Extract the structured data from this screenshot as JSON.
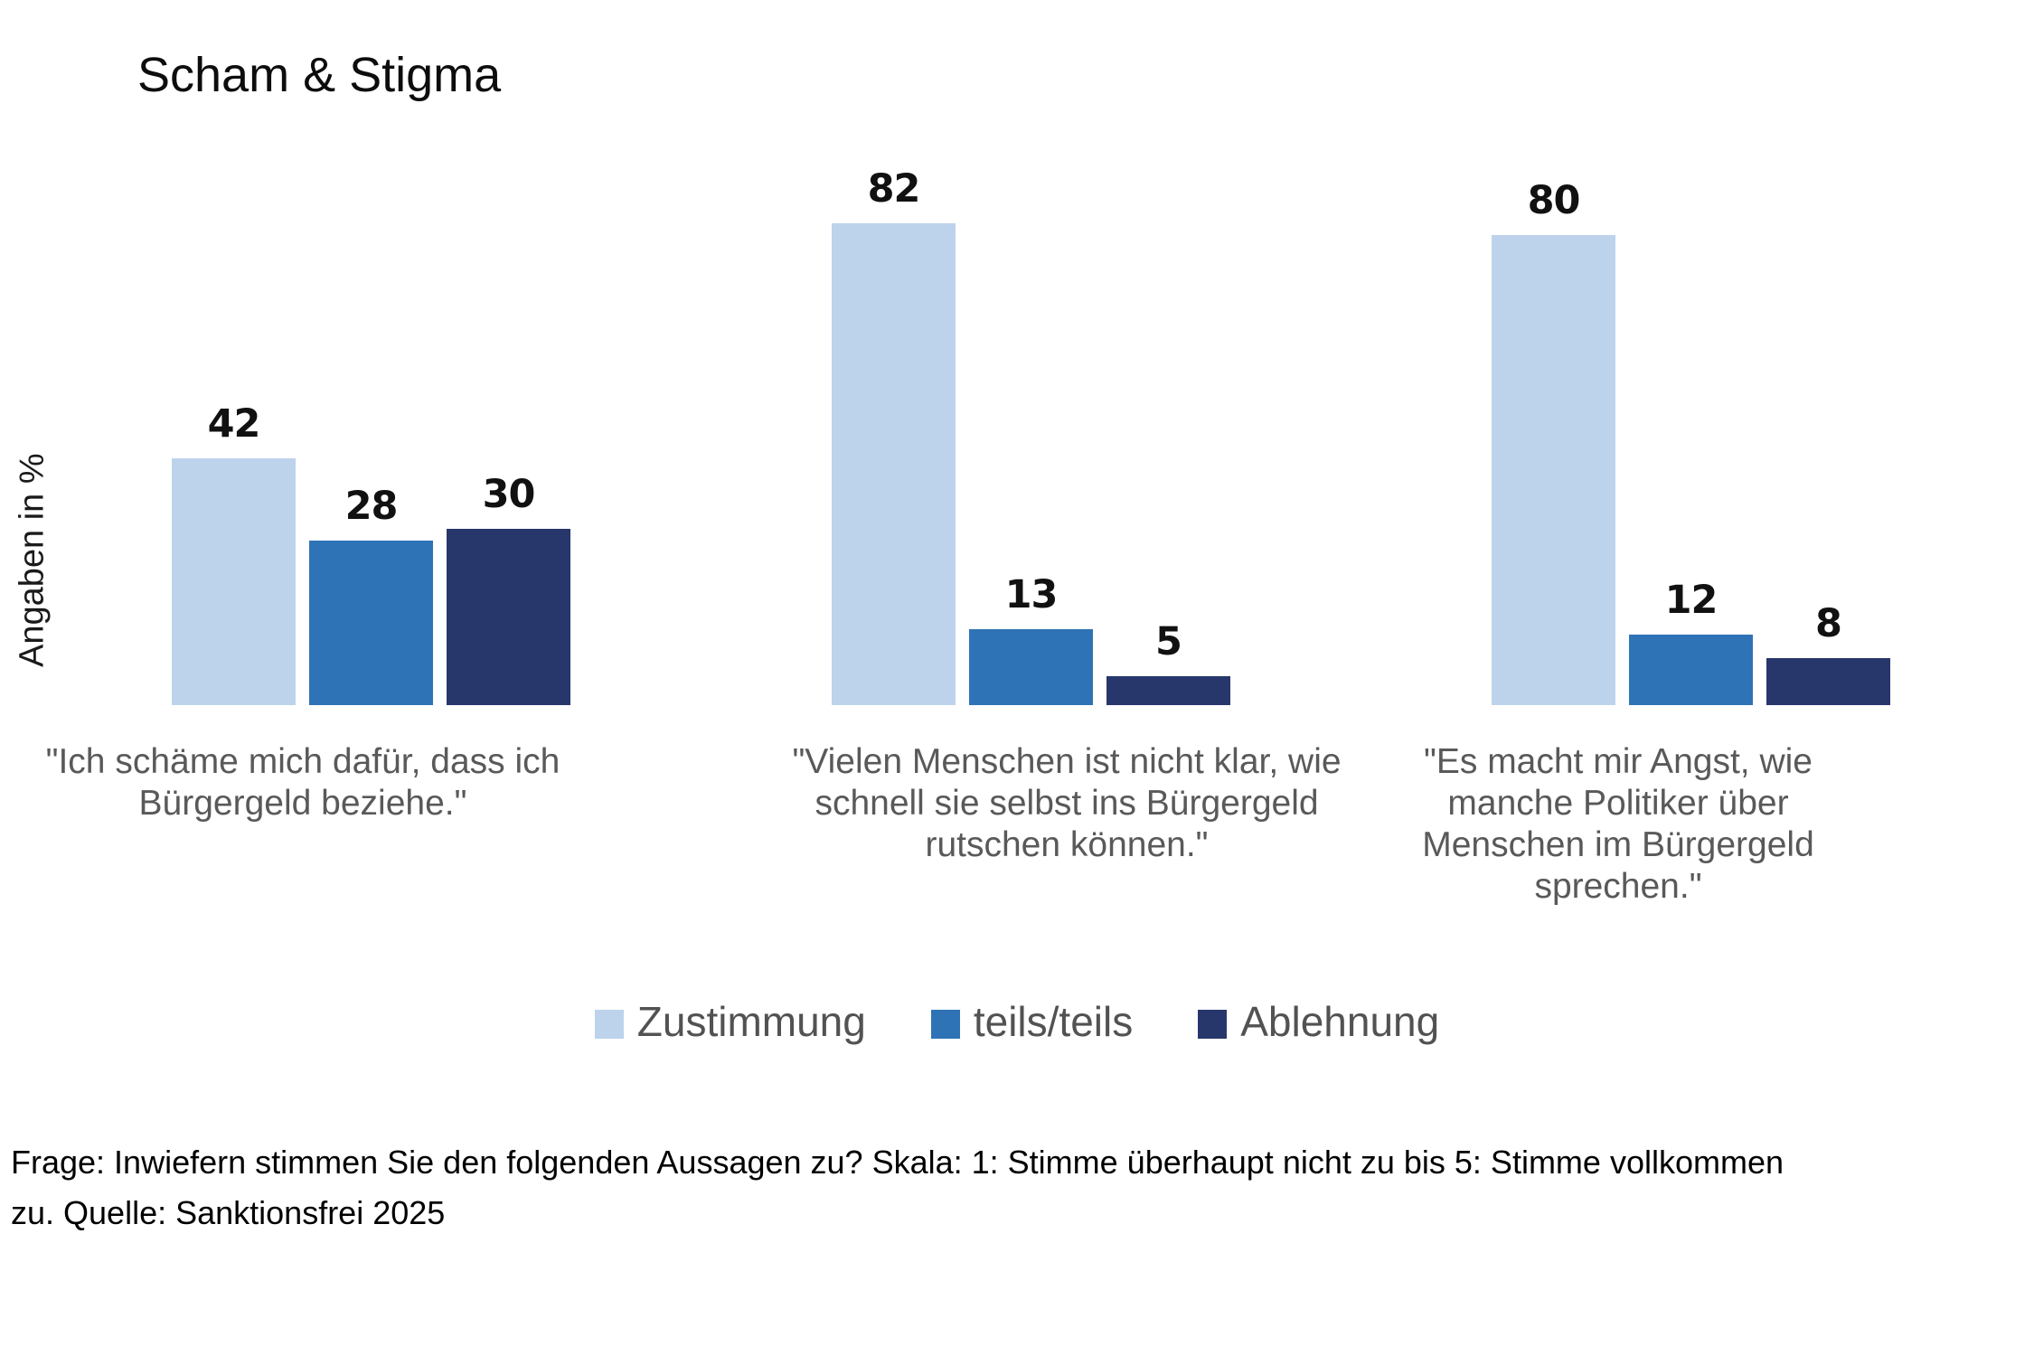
{
  "title": "Scham & Stigma",
  "chart_data": {
    "type": "bar",
    "title": "Scham & Stigma",
    "xlabel": "",
    "ylabel": "Angaben in %",
    "ylim": [
      0,
      90
    ],
    "grid": false,
    "value_labels": true,
    "legend_position": "bottom",
    "categories": [
      "\"Ich schäme mich dafür, dass ich Bürgergeld beziehe.\"",
      "\"Vielen Menschen ist nicht klar, wie schnell sie selbst ins Bürgergeld rutschen können.\"",
      "\"Es macht mir Angst, wie manche Politiker über Menschen im Bürgergeld sprechen.\""
    ],
    "series": [
      {
        "name": "Zustimmung",
        "color": "#bdd3ec",
        "values": [
          42,
          82,
          80
        ]
      },
      {
        "name": "teils/teils",
        "color": "#2e73b6",
        "values": [
          28,
          13,
          12
        ]
      },
      {
        "name": "Ablehnung",
        "color": "#28376b",
        "values": [
          30,
          5,
          8
        ]
      }
    ]
  },
  "footer": {
    "line1": "Frage: Inwiefern stimmen Sie den folgenden Aussagen zu? Skala: 1: Stimme überhaupt nicht zu bis 5: Stimme vollkommen",
    "line2": "zu. Quelle: Sanktionsfrei 2025"
  }
}
